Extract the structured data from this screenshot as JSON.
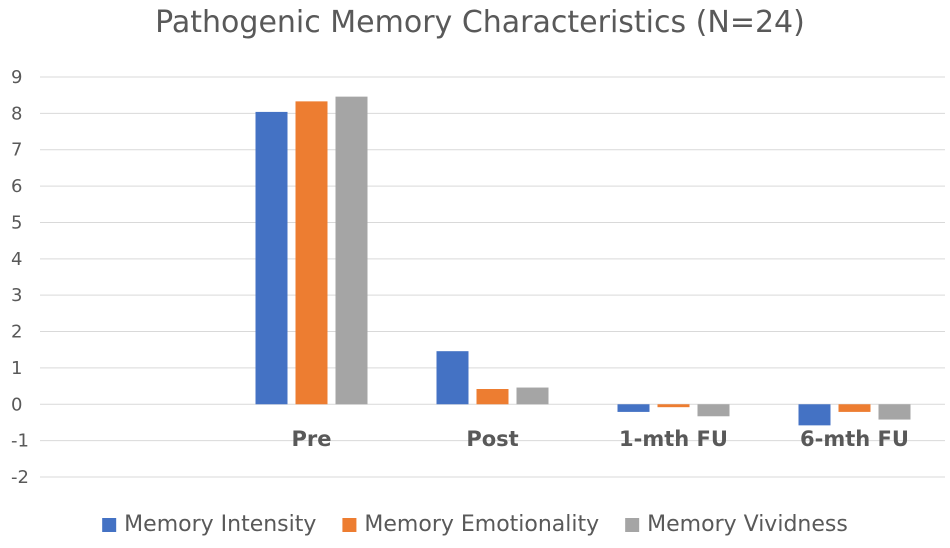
{
  "chart_data": {
    "type": "bar",
    "title": "Pathogenic Memory Characteristics (N=24)",
    "xlabel": "",
    "ylabel": "",
    "categories": [
      "",
      "Pre",
      "Post",
      "1-mth FU",
      "6-mth FU"
    ],
    "series": [
      {
        "name": "Memory Intensity",
        "color": "#4472c4",
        "values": [
          null,
          8.04,
          1.46,
          -0.21,
          -0.58
        ]
      },
      {
        "name": "Memory Emotionality",
        "color": "#ed7d31",
        "values": [
          null,
          8.33,
          0.42,
          -0.08,
          -0.21
        ]
      },
      {
        "name": "Memory Vividness",
        "color": "#a5a5a5",
        "values": [
          null,
          8.46,
          0.46,
          -0.33,
          -0.42
        ]
      }
    ],
    "ylim": [
      -2,
      9
    ],
    "yticks": [
      "9",
      "8",
      "7",
      "6",
      "5",
      "4",
      "3",
      "2",
      "1",
      "0",
      "-1",
      "-2"
    ],
    "grid": true,
    "legend_position": "bottom"
  }
}
